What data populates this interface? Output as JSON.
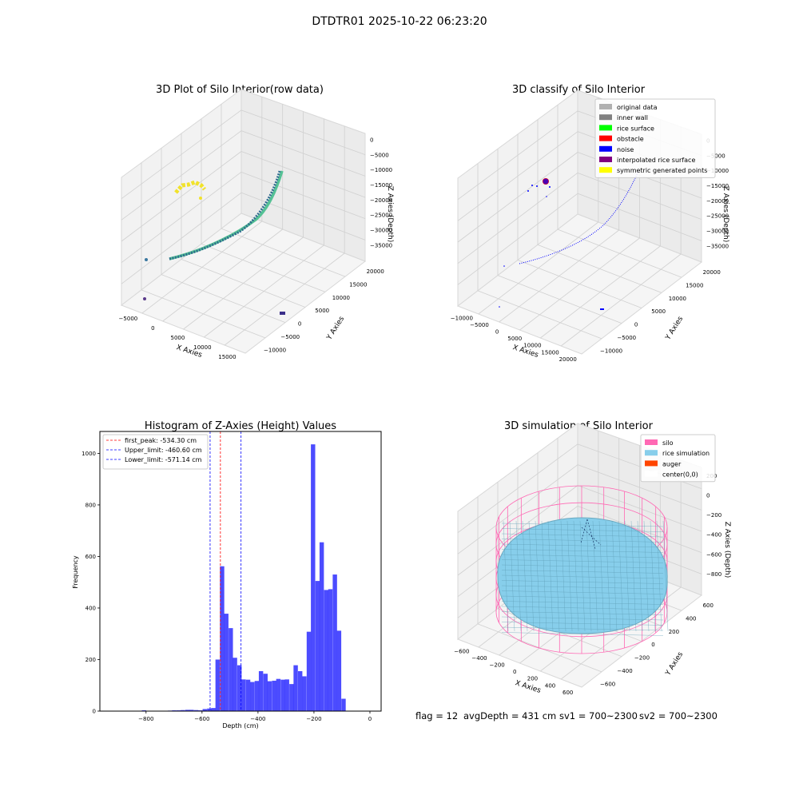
{
  "suptitle": "DTDTR01 2025-10-22 06:23:20",
  "footer": {
    "flag": "flag = 12",
    "avg_depth": "avgDepth = 431 cm",
    "sv1": "sv1 = 700~2300",
    "sv2": "sv2 = 700~2300"
  },
  "colors": {
    "histogram_bar": "#0000ff",
    "first_peak_line": "#ff0000",
    "limit_line": "#0000ff",
    "silo": "#ff69b4",
    "rice_simulation": "#87ceeb",
    "auger": "#ff4500"
  },
  "chart_data": [
    {
      "type": "scatter",
      "title": "3D Plot of Silo Interior(row data)",
      "xlabel": "X Axies",
      "ylabel": "Y Axies",
      "zlabel": "Z Axies (Depth)",
      "xticks": [
        "−5000",
        "0",
        "5000",
        "10000",
        "15000"
      ],
      "yticks": [
        "20000",
        "15000",
        "10000",
        "5000",
        "0",
        "−5000",
        "−10000"
      ],
      "zticks": [
        "0",
        "−5000",
        "−10000",
        "−15000",
        "−20000",
        "−25000",
        "−30000",
        "−35000"
      ],
      "projection": "3d",
      "grid": true
    },
    {
      "type": "scatter",
      "title": "3D classify of Silo Interior",
      "xlabel": "X Axies",
      "ylabel": "Y Axies",
      "zlabel": "Z Axies (Depth)",
      "xticks": [
        "−10000",
        "−5000",
        "0",
        "5000",
        "10000",
        "15000",
        "20000"
      ],
      "yticks": [
        "20000",
        "15000",
        "10000",
        "5000",
        "0",
        "−5000",
        "−10000"
      ],
      "zticks": [
        "0",
        "−5000",
        "−10000",
        "−15000",
        "−20000",
        "−25000",
        "−30000",
        "−35000"
      ],
      "legend": [
        {
          "label": "original data",
          "color": "#b0b0b0"
        },
        {
          "label": "inner wall",
          "color": "#808080"
        },
        {
          "label": "rice surface",
          "color": "#00ff00"
        },
        {
          "label": "obstacle",
          "color": "#ff0000"
        },
        {
          "label": "noise",
          "color": "#0000ff"
        },
        {
          "label": "interpolated rice surface",
          "color": "#800080"
        },
        {
          "label": "symmetric generated points",
          "color": "#ffff00"
        }
      ],
      "legend_position": "top-right",
      "projection": "3d",
      "grid": true
    },
    {
      "type": "bar",
      "title": "Histogram of Z-Axies (Height) Values",
      "xlabel": "Depth (cm)",
      "ylabel": "Frequency",
      "xlim": [
        -965,
        40
      ],
      "ylim": [
        0,
        1085
      ],
      "xticks": [
        -800,
        -600,
        -400,
        -200,
        0
      ],
      "xtick_labels": [
        "−800",
        "−600",
        "−400",
        "−200",
        "0"
      ],
      "yticks": [
        0,
        200,
        400,
        600,
        800,
        1000
      ],
      "yticks_labels": [
        "0",
        "200",
        "400",
        "600",
        "800",
        "1000"
      ],
      "bin_width": 15.5,
      "bins": [
        {
          "x": -815,
          "v": 3
        },
        {
          "x": -722,
          "v": 2
        },
        {
          "x": -707,
          "v": 3
        },
        {
          "x": -691,
          "v": 3
        },
        {
          "x": -676,
          "v": 4
        },
        {
          "x": -660,
          "v": 5
        },
        {
          "x": -645,
          "v": 5
        },
        {
          "x": -629,
          "v": 4
        },
        {
          "x": -614,
          "v": 3
        },
        {
          "x": -598,
          "v": 8
        },
        {
          "x": -582,
          "v": 10
        },
        {
          "x": -567,
          "v": 12
        },
        {
          "x": -552,
          "v": 200
        },
        {
          "x": -536,
          "v": 562
        },
        {
          "x": -521,
          "v": 378
        },
        {
          "x": -505,
          "v": 322
        },
        {
          "x": -490,
          "v": 207
        },
        {
          "x": -474,
          "v": 178
        },
        {
          "x": -459,
          "v": 123
        },
        {
          "x": -443,
          "v": 122
        },
        {
          "x": -428,
          "v": 113
        },
        {
          "x": -412,
          "v": 117
        },
        {
          "x": -397,
          "v": 155
        },
        {
          "x": -381,
          "v": 145
        },
        {
          "x": -366,
          "v": 116
        },
        {
          "x": -350,
          "v": 118
        },
        {
          "x": -335,
          "v": 125
        },
        {
          "x": -319,
          "v": 122
        },
        {
          "x": -304,
          "v": 123
        },
        {
          "x": -288,
          "v": 105
        },
        {
          "x": -273,
          "v": 178
        },
        {
          "x": -257,
          "v": 155
        },
        {
          "x": -242,
          "v": 135
        },
        {
          "x": -226,
          "v": 308
        },
        {
          "x": -211,
          "v": 1035
        },
        {
          "x": -195,
          "v": 505
        },
        {
          "x": -180,
          "v": 655
        },
        {
          "x": -164,
          "v": 470
        },
        {
          "x": -149,
          "v": 473
        },
        {
          "x": -133,
          "v": 530
        },
        {
          "x": -118,
          "v": 312
        },
        {
          "x": -102,
          "v": 48
        }
      ],
      "lines": [
        {
          "label": "first_peak: -534.30 cm",
          "x": -534.3,
          "color": "#ff0000"
        },
        {
          "label": "Upper_limit: -460.60 cm",
          "x": -460.6,
          "color": "#0000ff"
        },
        {
          "label": "Lower_limit: -571.14 cm",
          "x": -571.14,
          "color": "#0000ff"
        }
      ],
      "legend_position": "top-left",
      "grid": false
    },
    {
      "type": "scatter",
      "title": "3D simulation of Silo Interior",
      "xlabel": "X Axies",
      "ylabel": "Y Axies",
      "zlabel": "Z Axies (Depth)",
      "xticks": [
        "−600",
        "−400",
        "−200",
        "0",
        "200",
        "400",
        "600"
      ],
      "yticks": [
        "600",
        "400",
        "200",
        "0",
        "−200",
        "−400",
        "−600"
      ],
      "zticks": [
        "200",
        "0",
        "−200",
        "−400",
        "−600",
        "−800"
      ],
      "legend": [
        {
          "label": "silo",
          "color": "#ff69b4"
        },
        {
          "label": "rice simulation",
          "color": "#87ceeb"
        },
        {
          "label": "auger",
          "color": "#ff4500"
        },
        {
          "label": "center(0,0)",
          "color": "#ffffff"
        }
      ],
      "legend_position": "top-right",
      "projection": "3d",
      "grid": true
    }
  ]
}
